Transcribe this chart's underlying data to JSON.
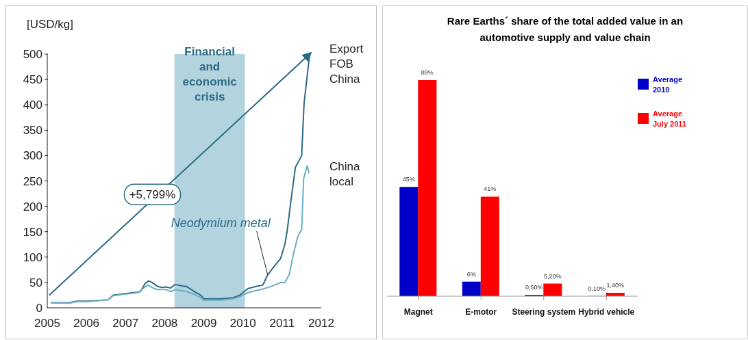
{
  "chart_data": [
    {
      "type": "line",
      "ylabel": "[USD/kg]",
      "xlim": [
        2005,
        2012
      ],
      "xticks": [
        2005,
        2006,
        2007,
        2008,
        2009,
        2010,
        2011,
        2012
      ],
      "ylim": [
        0,
        500
      ],
      "yticks": [
        0,
        50,
        100,
        150,
        200,
        250,
        300,
        350,
        400,
        450,
        500
      ],
      "series": [
        {
          "name": "Export FOB China",
          "color": "#2b6a85",
          "x": [
            2005.09,
            2005.56,
            2005.74,
            2006.03,
            2006.44,
            2006.56,
            2006.68,
            2006.98,
            2007.33,
            2007.39,
            2007.5,
            2007.59,
            2007.68,
            2007.8,
            2007.92,
            2008.04,
            2008.15,
            2008.27,
            2008.45,
            2008.56,
            2008.74,
            2008.92,
            2009.0,
            2009.45,
            2009.75,
            2009.92,
            2010.13,
            2010.33,
            2010.51,
            2010.63,
            2010.81,
            2010.96,
            2011.07,
            2011.13,
            2011.22,
            2011.34,
            2011.5,
            2011.56,
            2011.7
          ],
          "values": [
            10,
            10,
            13,
            13,
            15,
            16,
            25,
            28,
            31,
            33,
            48,
            53,
            50,
            43,
            40,
            41,
            39,
            46,
            43,
            42,
            33,
            25,
            18,
            18,
            20,
            25,
            38,
            42,
            45,
            65,
            83,
            97,
            125,
            152,
            208,
            277,
            300,
            402,
            497
          ]
        },
        {
          "name": "China local",
          "color": "#6aaec4",
          "x": [
            2005.09,
            2005.56,
            2005.74,
            2006.03,
            2006.44,
            2006.56,
            2006.68,
            2006.98,
            2007.33,
            2007.45,
            2007.57,
            2007.68,
            2007.8,
            2008.04,
            2008.15,
            2008.27,
            2008.56,
            2008.74,
            2008.92,
            2009.0,
            2009.45,
            2009.75,
            2009.92,
            2010.13,
            2010.33,
            2010.51,
            2010.63,
            2010.81,
            2010.96,
            2011.07,
            2011.18,
            2011.3,
            2011.4,
            2011.5,
            2011.55,
            2011.64,
            2011.69
          ],
          "values": [
            10,
            9,
            12,
            12,
            15,
            16,
            24,
            27,
            30,
            38,
            45,
            40,
            36,
            36,
            32,
            36,
            32,
            27,
            20,
            15,
            15,
            18,
            22,
            30,
            34,
            37,
            40,
            45,
            50,
            50,
            65,
            110,
            140,
            155,
            255,
            280,
            265
          ]
        },
        {
          "type": "line",
          "color": "#2b6a85",
          "x": [
            2005.05,
            2011.66
          ],
          "values": [
            25,
            497
          ]
        }
      ],
      "bands": [
        {
          "axis": "x",
          "from": 2008.25,
          "to": 2010.05,
          "label": "Financial and economic crisis",
          "color": "#b3d4df"
        }
      ],
      "annotations": [
        "+5,799%",
        {
          "text": "Neodymium metal",
          "x": 2010.63,
          "y": 65
        }
      ]
    },
    {
      "type": "bar",
      "title": "Rare Earths´ share of the total added value in an automotive supply and value chain",
      "categories": [
        "Magnet",
        "E-motor",
        "Steering system",
        "Hybrid  vehicle"
      ],
      "legend": "top right",
      "series": [
        {
          "name": "Average 2010",
          "color": "#0000c8",
          "values": [
            45,
            6,
            0.5,
            0.1
          ],
          "value_labels": [
            "45%",
            "6%",
            "0,50%",
            "0,10%"
          ]
        },
        {
          "name": "Average July 2011",
          "color": "#ff0000",
          "values": [
            89,
            41,
            5.2,
            1.4
          ],
          "value_labels": [
            "89%",
            "41%",
            "5,20%",
            "1,40%"
          ]
        }
      ]
    }
  ]
}
